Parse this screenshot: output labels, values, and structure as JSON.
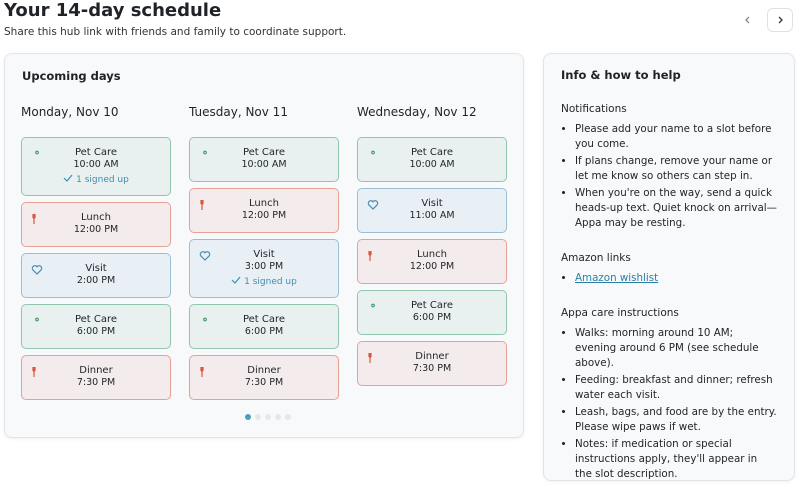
{
  "header": {
    "title": "Your 14-day schedule",
    "subtitle": "Share this hub link with friends and family to coordinate support."
  },
  "upcoming": {
    "title": "Upcoming days",
    "days": [
      {
        "date": "Monday, Nov 10",
        "slots": [
          {
            "label": "Pet Care",
            "time": "10:00 AM",
            "color": "#3f9a6e",
            "signed": "1 signed up"
          },
          {
            "label": "Lunch",
            "time": "12:00 PM",
            "color": "#d9573b"
          },
          {
            "label": "Visit",
            "time": "2:00 PM",
            "color": "#4a8db5"
          },
          {
            "label": "Pet Care",
            "time": "6:00 PM",
            "color": "#3f9a6e"
          },
          {
            "label": "Dinner",
            "time": "7:30 PM",
            "color": "#d9573b"
          }
        ]
      },
      {
        "date": "Tuesday, Nov 11",
        "slots": [
          {
            "label": "Pet Care",
            "time": "10:00 AM",
            "color": "#3f9a6e"
          },
          {
            "label": "Lunch",
            "time": "12:00 PM",
            "color": "#d9573b"
          },
          {
            "label": "Visit",
            "time": "3:00 PM",
            "color": "#4a8db5",
            "signed": "1 signed up"
          },
          {
            "label": "Pet Care",
            "time": "6:00 PM",
            "color": "#3f9a6e"
          },
          {
            "label": "Dinner",
            "time": "7:30 PM",
            "color": "#d9573b"
          }
        ]
      },
      {
        "date": "Wednesday, Nov 12",
        "slots": [
          {
            "label": "Pet Care",
            "time": "10:00 AM",
            "color": "#3f9a6e"
          },
          {
            "label": "Visit",
            "time": "11:00 AM",
            "color": "#4a8db5"
          },
          {
            "label": "Lunch",
            "time": "12:00 PM",
            "color": "#d9573b"
          },
          {
            "label": "Pet Care",
            "time": "6:00 PM",
            "color": "#3f9a6e"
          },
          {
            "label": "Dinner",
            "time": "7:30 PM",
            "color": "#d9573b"
          }
        ]
      }
    ]
  },
  "info": {
    "title": "Info & how to help",
    "sections": [
      {
        "heading": "Notifications",
        "items": [
          "Please add your name to a slot before you come.",
          "If plans change, remove your name or let me know so others can step in.",
          "When you're on the way, send a quick heads-up text. Quiet knock on arrival—Appa may be resting."
        ]
      },
      {
        "heading": "Amazon links",
        "links": [
          "Amazon wishlist"
        ]
      },
      {
        "heading": "Appa care instructions",
        "items": [
          "Walks: morning around 10 AM; evening around 6 PM (see schedule above).",
          "Feeding: breakfast and dinner; refresh water each visit.",
          "Leash, bags, and food are by the entry. Please wipe paws if wet.",
          "Notes: if medication or special instructions apply, they'll appear in the slot description."
        ]
      }
    ]
  }
}
